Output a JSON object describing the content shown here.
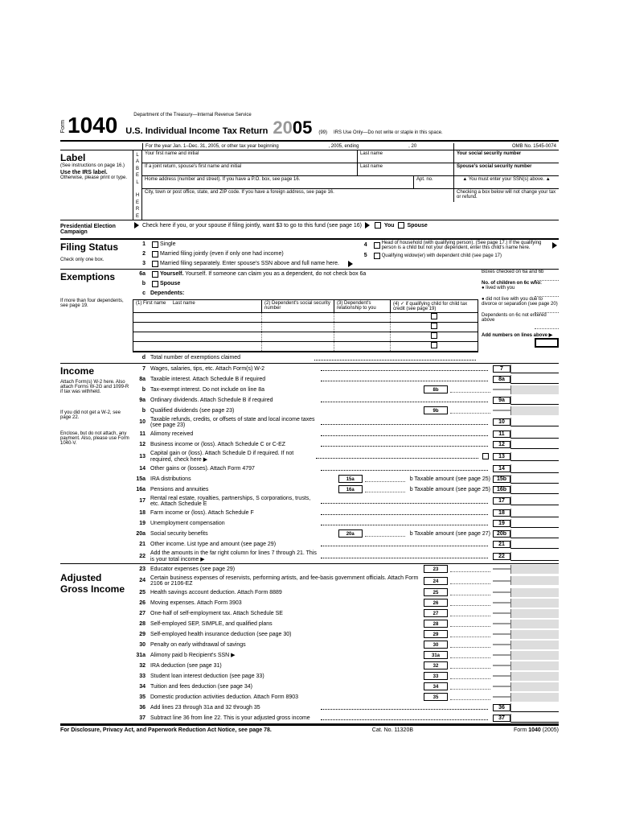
{
  "header": {
    "form_label": "Form",
    "form_number": "1040",
    "department": "Department of the Treasury—Internal Revenue Service",
    "title": "U.S. Individual Income Tax Return",
    "year_prefix": "20",
    "year_suffix": "05",
    "code_99": "(99)",
    "irs_use": "IRS Use Only—Do not write or staple in this space.",
    "period": "For the year Jan. 1–Dec. 31, 2005, or other tax year beginning",
    "period_end": ", 2005, ending",
    "period_yr": ", 20",
    "omb": "OMB No. 1545-0074"
  },
  "label": {
    "title": "Label",
    "note": "(See instructions on page 16.)",
    "use_irs": "Use the IRS label.",
    "otherwise": "Otherwise, please print or type.",
    "strip": "LABEL HERE",
    "first_name": "Your first name and initial",
    "last_name": "Last name",
    "spouse_first": "If a joint return, spouse's first name and initial",
    "spouse_last": "Last name",
    "address": "Home address (number and street). If you have a P.O. box, see page 16.",
    "apt": "Apt. no.",
    "city": "City, town or post office, state, and ZIP code. If you have a foreign address, see page 16.",
    "ssn": "Your social security number",
    "spouse_ssn": "Spouse's social security number",
    "must_enter": "You must enter your SSN(s) above.",
    "checking_box": "Checking a box below will not change your tax or refund."
  },
  "election": {
    "title": "Presidential Election Campaign",
    "text": "Check here if you, or your spouse if filing jointly, want $3 to go to this fund (see page 16)",
    "you": "You",
    "spouse": "Spouse"
  },
  "filing": {
    "title": "Filing Status",
    "note": "Check only one box.",
    "opt1": "Single",
    "opt2": "Married filing jointly (even if only one had income)",
    "opt3": "Married filing separately. Enter spouse's SSN above and full name here.",
    "opt4": "Head of household (with qualifying person). (See page 17.) If the qualifying person is a child but not your dependent, enter this child's name here.",
    "opt5": "Qualifying widow(er) with dependent child (see page 17)"
  },
  "exemptions": {
    "title": "Exemptions",
    "note": "If more than four dependents, see page 19.",
    "l6a": "Yourself. If someone can claim you as a dependent, do not check box 6a",
    "l6b": "Spouse",
    "l6c": "Dependents:",
    "col1a": "(1) First name",
    "col1b": "Last name",
    "col2": "(2) Dependent's social security number",
    "col3": "(3) Dependent's relationship to you",
    "col4": "(4) ✓ if qualifying child for child tax credit (see page 19)",
    "l6d": "Total number of exemptions claimed",
    "boxes_checked": "Boxes checked on 6a and 6b",
    "no_children": "No. of children on 6c who:",
    "lived": "● lived with you",
    "not_live": "● did not live with you due to divorce or separation (see page 20)",
    "deps_6c": "Dependents on 6c not entered above",
    "add_numbers": "Add numbers on lines above ▶"
  },
  "income": {
    "title": "Income",
    "note1": "Attach Form(s) W-2 here. Also attach Forms W-2G and 1099-R if tax was withheld.",
    "note2": "If you did not get a W-2, see page 22.",
    "note3": "Enclose, but do not attach, any payment. Also, please use Form 1040-V.",
    "lines": [
      {
        "n": "7",
        "t": "Wages, salaries, tips, etc. Attach Form(s) W-2",
        "box": "7"
      },
      {
        "n": "8a",
        "t": "Taxable interest. Attach Schedule B if required",
        "box": "8a"
      },
      {
        "n": "b",
        "t": "Tax-exempt interest. Do not include on line 8a",
        "mid": "8b"
      },
      {
        "n": "9a",
        "t": "Ordinary dividends. Attach Schedule B if required",
        "box": "9a"
      },
      {
        "n": "b",
        "t": "Qualified dividends (see page 23)",
        "mid": "9b"
      },
      {
        "n": "10",
        "t": "Taxable refunds, credits, or offsets of state and local income taxes (see page 23)",
        "box": "10"
      },
      {
        "n": "11",
        "t": "Alimony received",
        "box": "11"
      },
      {
        "n": "12",
        "t": "Business income or (loss). Attach Schedule C or C-EZ",
        "box": "12"
      },
      {
        "n": "13",
        "t": "Capital gain or (loss). Attach Schedule D if required. If not required, check here ▶",
        "box": "13",
        "chk": true
      },
      {
        "n": "14",
        "t": "Other gains or (losses). Attach Form 4797",
        "box": "14"
      },
      {
        "n": "15a",
        "t": "IRA distributions",
        "mid": "15a",
        "tb": "b Taxable amount (see page 25)",
        "box": "15b"
      },
      {
        "n": "16a",
        "t": "Pensions and annuities",
        "mid": "16a",
        "tb": "b Taxable amount (see page 25)",
        "box": "16b"
      },
      {
        "n": "17",
        "t": "Rental real estate, royalties, partnerships, S corporations, trusts, etc. Attach Schedule E",
        "box": "17"
      },
      {
        "n": "18",
        "t": "Farm income or (loss). Attach Schedule F",
        "box": "18"
      },
      {
        "n": "19",
        "t": "Unemployment compensation",
        "box": "19"
      },
      {
        "n": "20a",
        "t": "Social security benefits",
        "mid": "20a",
        "tb": "b Taxable amount (see page 27)",
        "box": "20b"
      },
      {
        "n": "21",
        "t": "Other income. List type and amount (see page 29)",
        "box": "21"
      },
      {
        "n": "22",
        "t": "Add the amounts in the far right column for lines 7 through 21. This is your total income ▶",
        "box": "22"
      }
    ]
  },
  "agi": {
    "title": "Adjusted Gross Income",
    "lines": [
      {
        "n": "23",
        "t": "Educator expenses (see page 29)",
        "mid": "23"
      },
      {
        "n": "24",
        "t": "Certain business expenses of reservists, performing artists, and fee-basis government officials. Attach Form 2106 or 2106-EZ",
        "mid": "24"
      },
      {
        "n": "25",
        "t": "Health savings account deduction. Attach Form 8889",
        "mid": "25"
      },
      {
        "n": "26",
        "t": "Moving expenses. Attach Form 3903",
        "mid": "26"
      },
      {
        "n": "27",
        "t": "One-half of self-employment tax. Attach Schedule SE",
        "mid": "27"
      },
      {
        "n": "28",
        "t": "Self-employed SEP, SIMPLE, and qualified plans",
        "mid": "28"
      },
      {
        "n": "29",
        "t": "Self-employed health insurance deduction (see page 30)",
        "mid": "29"
      },
      {
        "n": "30",
        "t": "Penalty on early withdrawal of savings",
        "mid": "30"
      },
      {
        "n": "31a",
        "t": "Alimony paid   b Recipient's SSN ▶",
        "mid": "31a"
      },
      {
        "n": "32",
        "t": "IRA deduction (see page 31)",
        "mid": "32"
      },
      {
        "n": "33",
        "t": "Student loan interest deduction (see page 33)",
        "mid": "33"
      },
      {
        "n": "34",
        "t": "Tuition and fees deduction (see page 34)",
        "mid": "34"
      },
      {
        "n": "35",
        "t": "Domestic production activities deduction. Attach Form 8903",
        "mid": "35"
      },
      {
        "n": "36",
        "t": "Add lines 23 through 31a and 32 through 35",
        "box": "36"
      },
      {
        "n": "37",
        "t": "Subtract line 36 from line 22. This is your adjusted gross income",
        "box": "37",
        "arrow": true
      }
    ]
  },
  "footer": {
    "disclosure": "For Disclosure, Privacy Act, and Paperwork Reduction Act Notice, see page 78.",
    "cat": "Cat. No. 11320B",
    "form": "Form 1040 (2005)"
  }
}
